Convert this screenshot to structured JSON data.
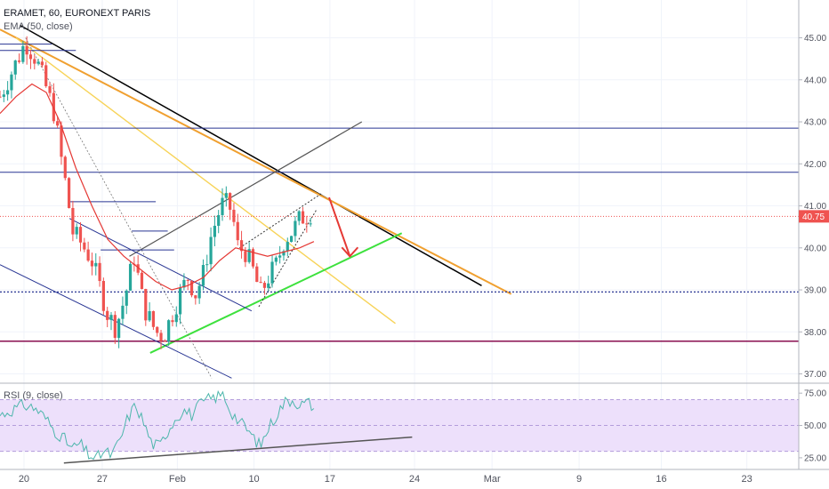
{
  "header": {
    "title": "ERAMET, 60, EURONEXT PARIS",
    "ema_label": "EMA (50, close)",
    "rsi_label": "RSI (9, close)"
  },
  "colors": {
    "up": "#26a69a",
    "down": "#ef5350",
    "ema": "#e53935",
    "rsi": "#4db6ac",
    "rsi_band": "#ede0fb",
    "orange": "#f0a030",
    "yellow": "#f7d358",
    "green": "#3de13d",
    "navy": "#283593",
    "maroon": "#880e4f",
    "arrow": "#e53935",
    "price_tag": "#ef5350"
  },
  "chart_data": [
    {
      "type": "candlestick",
      "title": "ERAMET, 60, EURONEXT PARIS",
      "ylim": [
        36.8,
        45.9
      ],
      "xlim": [
        0,
        100
      ],
      "y_ticks": [
        "37.00",
        "38.00",
        "39.00",
        "40.00",
        "41.00",
        "42.00",
        "43.00",
        "44.00",
        "45.00"
      ],
      "x_ticks": [
        {
          "x": 3.0,
          "label": "20"
        },
        {
          "x": 12.8,
          "label": "27"
        },
        {
          "x": 22.2,
          "label": "Feb"
        },
        {
          "x": 31.8,
          "label": "10"
        },
        {
          "x": 41.3,
          "label": "17"
        },
        {
          "x": 51.9,
          "label": "24"
        },
        {
          "x": 61.6,
          "label": "Mar"
        },
        {
          "x": 72.5,
          "label": "9"
        },
        {
          "x": 82.8,
          "label": "16"
        },
        {
          "x": 93.5,
          "label": "23"
        }
      ],
      "last_price": "40.75",
      "close_path": [
        [
          0,
          43.6
        ],
        [
          1.5,
          44.2
        ],
        [
          3.2,
          44.9
        ],
        [
          4.5,
          44.5
        ],
        [
          5.8,
          43.8
        ],
        [
          6.8,
          43.2
        ],
        [
          7.6,
          42.2
        ],
        [
          8.5,
          41.2
        ],
        [
          9.0,
          40.4
        ],
        [
          10.2,
          40.1
        ],
        [
          11.5,
          39.7
        ],
        [
          12.6,
          39.0
        ],
        [
          13.5,
          38.4
        ],
        [
          14.5,
          38.1
        ],
        [
          15.6,
          38.8
        ],
        [
          16.8,
          39.8
        ],
        [
          18.0,
          38.6
        ],
        [
          19.5,
          38.0
        ],
        [
          20.5,
          37.9
        ],
        [
          21.5,
          38.4
        ],
        [
          22.5,
          38.9
        ],
        [
          23.5,
          39.3
        ],
        [
          24.5,
          38.9
        ],
        [
          25.5,
          39.4
        ],
        [
          26.3,
          40.2
        ],
        [
          27.3,
          40.8
        ],
        [
          28.0,
          41.1
        ],
        [
          29.0,
          40.9
        ],
        [
          29.8,
          40.0
        ],
        [
          30.8,
          39.9
        ],
        [
          31.8,
          39.4
        ],
        [
          32.6,
          38.9
        ],
        [
          33.6,
          39.3
        ],
        [
          34.6,
          39.6
        ],
        [
          35.6,
          40.2
        ],
        [
          36.6,
          40.4
        ],
        [
          37.6,
          40.7
        ],
        [
          38.6,
          40.8
        ],
        [
          39.3,
          40.9
        ]
      ],
      "ema_path": [
        [
          0,
          43.2
        ],
        [
          2.0,
          43.6
        ],
        [
          4.0,
          43.9
        ],
        [
          5.8,
          43.7
        ],
        [
          7.5,
          43.0
        ],
        [
          9.5,
          41.9
        ],
        [
          11.5,
          41.0
        ],
        [
          13.5,
          40.2
        ],
        [
          15.5,
          39.8
        ],
        [
          17.5,
          39.5
        ],
        [
          19.5,
          39.2
        ],
        [
          21.5,
          39.0
        ],
        [
          23.5,
          39.1
        ],
        [
          25.5,
          39.3
        ],
        [
          27.5,
          39.7
        ],
        [
          29.5,
          40.0
        ],
        [
          31.5,
          39.9
        ],
        [
          33.5,
          39.8
        ],
        [
          35.5,
          39.9
        ],
        [
          37.5,
          40.0
        ],
        [
          39.3,
          40.15
        ]
      ],
      "trendlines": [
        {
          "color": "black",
          "from": [
            2.5,
            45.3
          ],
          "to": [
            60.3,
            39.1
          ],
          "width": 1.5
        },
        {
          "color": "orange",
          "from": [
            0,
            45.2
          ],
          "to": [
            64.0,
            38.9
          ],
          "width": 2
        },
        {
          "color": "yellow",
          "from": [
            2.0,
            45.0
          ],
          "to": [
            49.5,
            38.2
          ],
          "width": 1.4
        },
        {
          "color": "green",
          "from": [
            18.8,
            37.5
          ],
          "to": [
            50.3,
            40.35
          ],
          "width": 2
        },
        {
          "color": "navy",
          "from": [
            0,
            41.8
          ],
          "to": [
            100,
            41.8
          ],
          "width": 1
        },
        {
          "color": "navy",
          "from": [
            0,
            42.85
          ],
          "to": [
            100,
            42.85
          ],
          "width": 1
        },
        {
          "color": "maroon",
          "from": [
            0,
            37.78
          ],
          "to": [
            100,
            37.78
          ],
          "width": 1.5
        },
        {
          "color": "navy",
          "from": [
            0,
            38.95
          ],
          "to": [
            100,
            38.95
          ],
          "width": 1.2,
          "dash": "2,2"
        },
        {
          "color": "gray",
          "from": [
            16.2,
            39.8
          ],
          "to": [
            45.3,
            43.0
          ],
          "width": 1.2
        },
        {
          "color": "navy",
          "from": [
            8.7,
            40.7
          ],
          "to": [
            31.5,
            38.5
          ],
          "width": 1
        },
        {
          "color": "navy",
          "from": [
            0,
            39.6
          ],
          "to": [
            29.0,
            36.9
          ],
          "width": 1
        }
      ],
      "arrow": {
        "from": [
          41.2,
          41.2
        ],
        "to": [
          43.8,
          39.8
        ]
      }
    },
    {
      "type": "line",
      "title": "RSI (9, close)",
      "ylim": [
        16,
        82
      ],
      "y_ticks": [
        "25.00",
        "50.00",
        "75.00"
      ],
      "band": [
        30,
        70
      ],
      "values": [
        [
          0,
          58
        ],
        [
          1.5,
          62
        ],
        [
          3.0,
          66
        ],
        [
          4.5,
          63
        ],
        [
          5.8,
          55
        ],
        [
          6.8,
          46
        ],
        [
          8.0,
          40
        ],
        [
          9.0,
          32
        ],
        [
          10.0,
          36
        ],
        [
          11.0,
          28
        ],
        [
          12.0,
          24
        ],
        [
          13.0,
          30
        ],
        [
          14.0,
          27
        ],
        [
          15.0,
          38
        ],
        [
          16.0,
          56
        ],
        [
          17.0,
          66
        ],
        [
          18.0,
          52
        ],
        [
          19.0,
          36
        ],
        [
          20.0,
          34
        ],
        [
          21.0,
          46
        ],
        [
          22.0,
          56
        ],
        [
          23.0,
          62
        ],
        [
          24.0,
          58
        ],
        [
          25.0,
          66
        ],
        [
          26.0,
          70
        ],
        [
          27.0,
          72
        ],
        [
          28.0,
          74
        ],
        [
          28.8,
          62
        ],
        [
          29.8,
          54
        ],
        [
          30.8,
          48
        ],
        [
          31.8,
          40
        ],
        [
          32.6,
          34
        ],
        [
          33.6,
          48
        ],
        [
          34.6,
          58
        ],
        [
          35.6,
          68
        ],
        [
          36.6,
          70
        ],
        [
          37.6,
          66
        ],
        [
          38.6,
          68
        ],
        [
          39.3,
          64
        ]
      ],
      "trendlines": [
        {
          "from": [
            8.0,
            21
          ],
          "to": [
            51.6,
            41
          ]
        }
      ]
    }
  ]
}
